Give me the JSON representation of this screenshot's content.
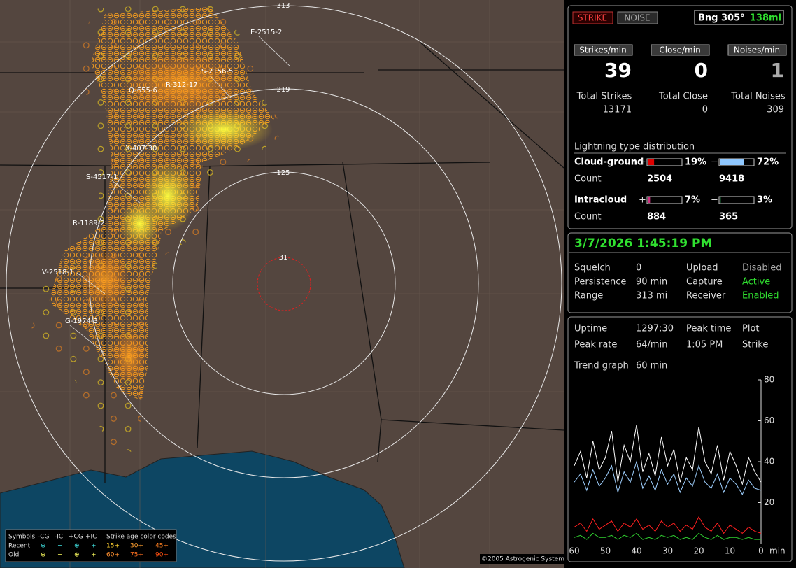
{
  "map": {
    "range_rings": [
      "313",
      "219",
      "125",
      "31"
    ],
    "storm_labels": [
      "E-2515-2",
      "S-2156-5",
      "R-312-17",
      "Q-655-6",
      "X-407-30",
      "S-4517-1",
      "R-1189-2",
      "V-2518-1",
      "G-1974-3"
    ],
    "legend": {
      "header": [
        "Symbols",
        "-CG",
        "-IC",
        "+CG",
        "+IC",
        "Strike age color codes"
      ],
      "recent": [
        "Recent",
        "⊖",
        "−",
        "⊕",
        "+",
        "15+",
        "30+",
        "45+"
      ],
      "old": [
        "Old",
        "⊖",
        "−",
        "⊕",
        "+",
        "60+",
        "75+",
        "90+"
      ]
    },
    "copyright": "©2005 Astrogenic Systems"
  },
  "header": {
    "strike_button": "STRIKE",
    "noise_button": "NOISE",
    "bearing": "Bng 305°",
    "distance": "138mi"
  },
  "rates": [
    {
      "label": "Strikes/min",
      "value": 39,
      "total_label": "Total Strikes",
      "total": 13171
    },
    {
      "label": "Close/min",
      "value": 0,
      "total_label": "Total Close",
      "total": 0
    },
    {
      "label": "Noises/min",
      "value": 1,
      "total_label": "Total Noises",
      "total": 309
    }
  ],
  "distribution": {
    "title": "Lightning type distribution",
    "rows": [
      {
        "label": "Cloud-ground",
        "pos_sign": "+",
        "pos_pct": 19,
        "pos_pct_label": "19%",
        "neg_sign": "−",
        "neg_pct": 72,
        "neg_pct_label": "72%",
        "count_label": "Count",
        "pos_count": 2504,
        "neg_count": 9418
      },
      {
        "label": "Intracloud",
        "pos_sign": "+",
        "pos_pct": 7,
        "pos_pct_label": "7%",
        "neg_sign": "−",
        "neg_pct": 3,
        "neg_pct_label": "3%",
        "count_label": "Count",
        "pos_count": 884,
        "neg_count": 365
      }
    ]
  },
  "status": {
    "datetime": "3/7/2026 1:45:19 PM",
    "rows": [
      [
        "Squelch",
        "0",
        "Upload",
        "Disabled"
      ],
      [
        "Persistence",
        "90 min",
        "Capture",
        "Active"
      ],
      [
        "Range",
        "313 mi",
        "Receiver",
        "Enabled"
      ]
    ]
  },
  "stats": {
    "rows": [
      [
        "Uptime",
        "1297:30",
        "Peak time",
        "Plot"
      ],
      [
        "Peak rate",
        "64/min",
        "1:05 PM",
        "Strike"
      ]
    ],
    "trend_label": "Trend graph",
    "trend_span": "60 min"
  },
  "trend_chart": {
    "type": "line",
    "x": [
      60,
      58,
      56,
      54,
      52,
      50,
      48,
      46,
      44,
      42,
      40,
      38,
      36,
      34,
      32,
      30,
      28,
      26,
      24,
      22,
      20,
      18,
      16,
      14,
      12,
      10,
      8,
      6,
      4,
      2,
      0
    ],
    "xlim": [
      60,
      0
    ],
    "xticks": [
      60,
      50,
      40,
      30,
      20,
      10,
      0
    ],
    "x_unit": "min",
    "ylim": [
      0,
      80
    ],
    "yticks": [
      20,
      40,
      60,
      80
    ],
    "series": [
      {
        "color": "#ffffff",
        "values": [
          38,
          45,
          32,
          50,
          36,
          42,
          55,
          30,
          48,
          40,
          58,
          35,
          44,
          33,
          52,
          38,
          46,
          30,
          42,
          36,
          57,
          40,
          34,
          48,
          31,
          45,
          38,
          29,
          42,
          35,
          30
        ]
      },
      {
        "color": "#9fd0ff",
        "values": [
          30,
          34,
          26,
          36,
          28,
          32,
          38,
          25,
          35,
          30,
          40,
          27,
          33,
          26,
          36,
          29,
          34,
          25,
          32,
          28,
          38,
          30,
          27,
          34,
          25,
          32,
          29,
          24,
          31,
          27,
          26
        ]
      },
      {
        "color": "#ff2020",
        "values": [
          8,
          10,
          6,
          12,
          7,
          9,
          11,
          6,
          10,
          8,
          12,
          7,
          9,
          6,
          11,
          8,
          10,
          6,
          9,
          7,
          13,
          8,
          6,
          10,
          5,
          9,
          7,
          5,
          8,
          6,
          5
        ]
      },
      {
        "color": "#30d030",
        "values": [
          3,
          4,
          2,
          5,
          3,
          3,
          4,
          2,
          4,
          3,
          5,
          2,
          3,
          2,
          4,
          3,
          4,
          2,
          3,
          2,
          5,
          3,
          2,
          4,
          2,
          3,
          3,
          2,
          3,
          2,
          2
        ]
      }
    ]
  }
}
